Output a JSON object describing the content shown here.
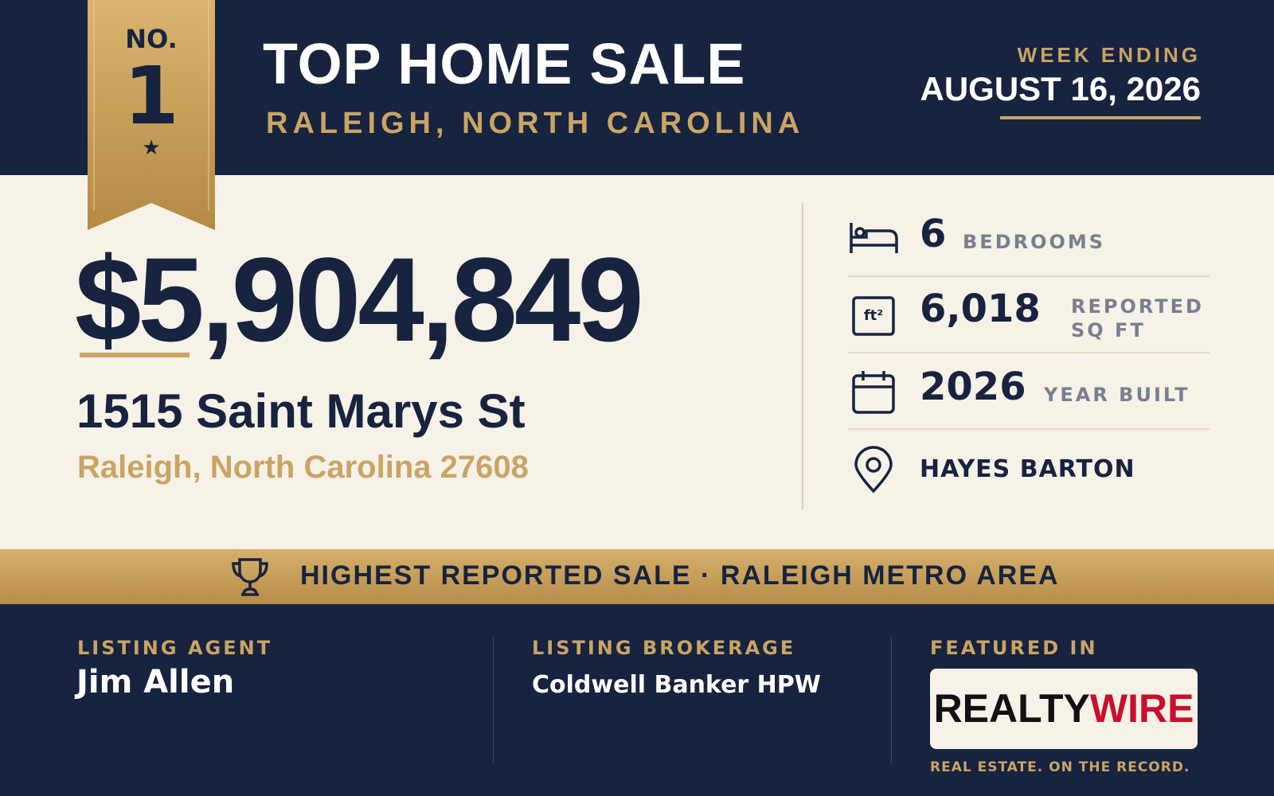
{
  "header": {
    "badge": {
      "prefix": "NO.",
      "rank": "1"
    },
    "title": "TOP HOME SALE",
    "subtitle": "RALEIGH, NORTH CAROLINA",
    "week_label": "WEEK ENDING",
    "week_date": "AUGUST 16, 2026"
  },
  "sale": {
    "price": "$5,904,849",
    "address": "1515 Saint Marys St",
    "city": "Raleigh, North Carolina 27608"
  },
  "stats": [
    {
      "value": "6",
      "label": "BEDROOMS"
    },
    {
      "icon_label": "ft²",
      "value": "6,018",
      "label": "REPORTED SQ FT"
    },
    {
      "value": "2026",
      "label": "YEAR BUILT"
    },
    {
      "value": "HAYES BARTON"
    }
  ],
  "banner": "HIGHEST REPORTED SALE · RALEIGH METRO AREA",
  "footer": {
    "agent": {
      "label": "LISTING AGENT",
      "name": "Jim Allen"
    },
    "brokerage": {
      "label": "LISTING BROKERAGE",
      "name": "Coldwell Banker HPW"
    },
    "featured": {
      "label": "FEATURED IN",
      "logo_first": "REALTY",
      "logo_second": "WIRE",
      "tagline": "REAL ESTATE. ON THE RECORD."
    }
  }
}
